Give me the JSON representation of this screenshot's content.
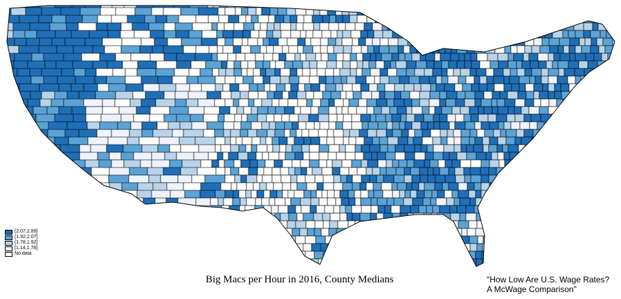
{
  "map": {
    "title": "Big Macs per Hour in 2016, County Medians",
    "source_quote_line1": "\"How Low Are U.S. Wage Rates?",
    "source_quote_line2": "A McWage Comparison\"",
    "legend": [
      {
        "label": "(2.07,2.89]",
        "color": "#1f6fb8"
      },
      {
        "label": "(1.92,2.07]",
        "color": "#5ba3d6"
      },
      {
        "label": "(1.78,1.92]",
        "color": "#b7d4ea"
      },
      {
        "label": "[1.14,1.78]",
        "color": "#eef3fd"
      },
      {
        "label": "No data",
        "color": "#ffffff"
      }
    ]
  }
}
